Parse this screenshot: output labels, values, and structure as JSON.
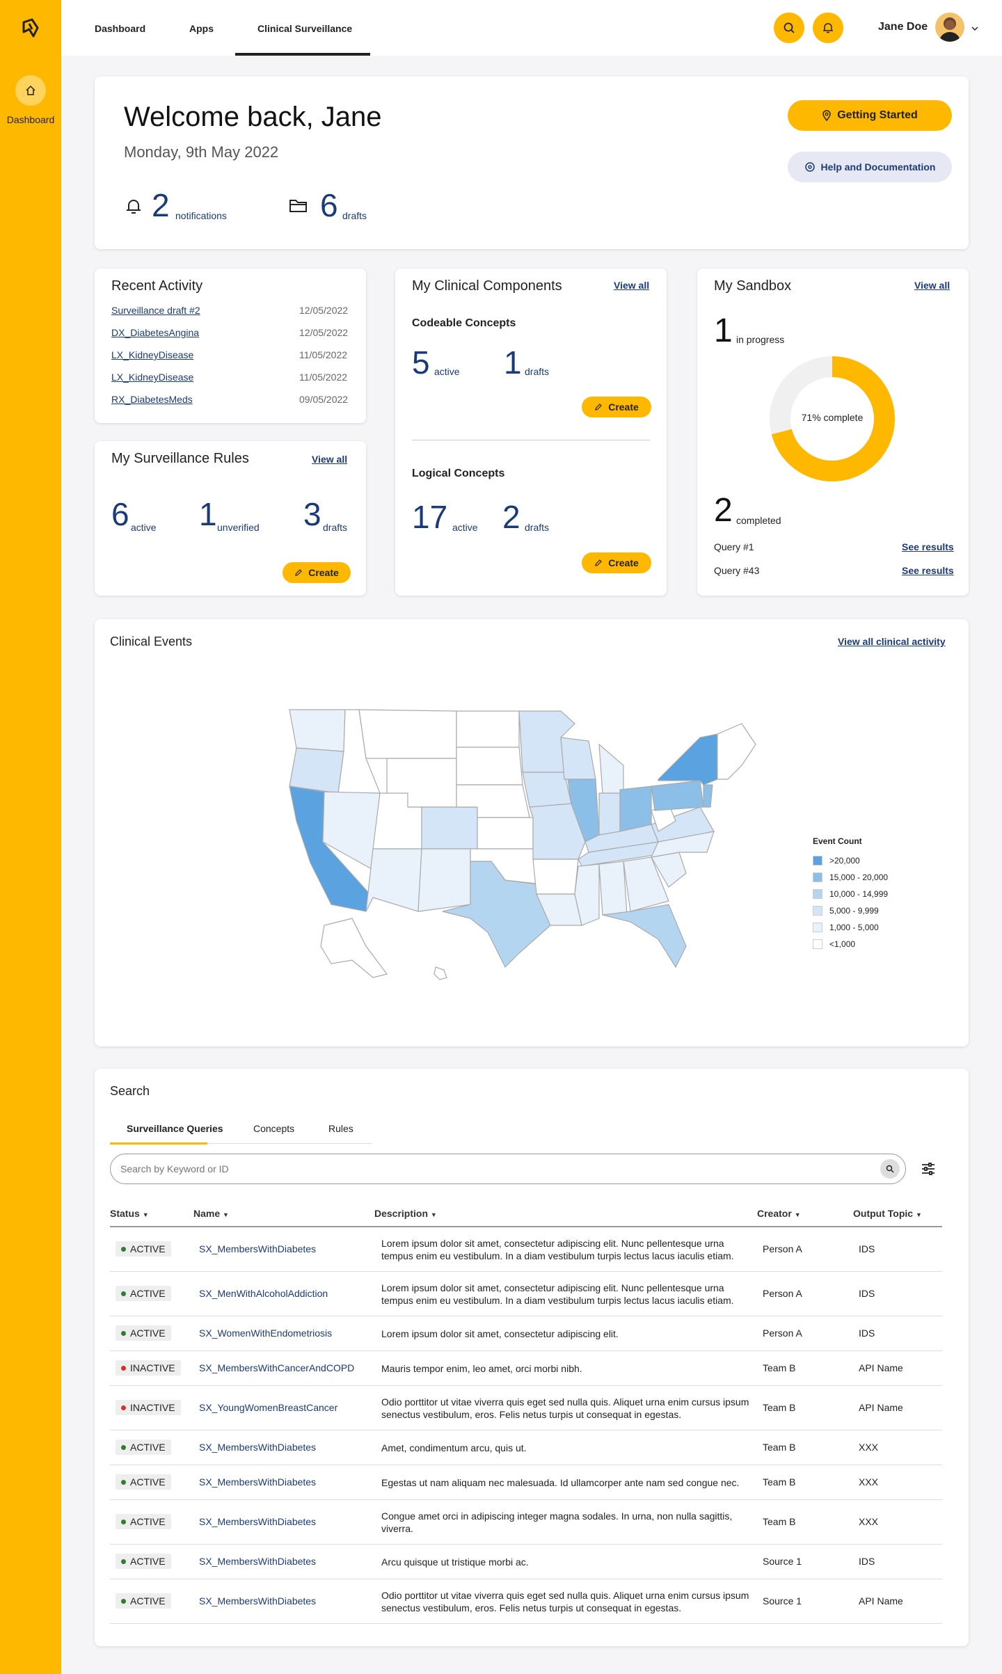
{
  "sidebar": {
    "home_label": "Dashboard"
  },
  "topnav": {
    "tabs": [
      "Dashboard",
      "Apps",
      "Clinical Surveillance"
    ],
    "user_name": "Jane Doe"
  },
  "welcome": {
    "title": "Welcome back, Jane",
    "date": "Monday, 9th May 2022",
    "notifications_count": "2",
    "notifications_label": "notifications",
    "drafts_count": "6",
    "drafts_label": "drafts",
    "getting_started": "Getting Started",
    "help": "Help and Documentation"
  },
  "recent_activity": {
    "title": "Recent Activity",
    "items": [
      {
        "name": "Surveillance draft #2",
        "date": "12/05/2022"
      },
      {
        "name": "DX_DiabetesAngina",
        "date": "12/05/2022"
      },
      {
        "name": "LX_KidneyDisease",
        "date": "11/05/2022"
      },
      {
        "name": "LX_KidneyDisease",
        "date": "11/05/2022"
      },
      {
        "name": "RX_DiabetesMeds",
        "date": "09/05/2022"
      }
    ]
  },
  "rules": {
    "title": "My Surveillance Rules",
    "view_all": "View all",
    "active": "6",
    "active_label": "active",
    "unverified": "1",
    "unverified_label": "unverified",
    "drafts": "3",
    "drafts_label": "drafts",
    "create": "Create"
  },
  "components": {
    "title": "My Clinical Components",
    "view_all": "View all",
    "codeable": {
      "title": "Codeable Concepts",
      "active": "5",
      "active_label": "active",
      "drafts": "1",
      "drafts_label": "drafts",
      "create": "Create"
    },
    "logical": {
      "title": "Logical Concepts",
      "active": "17",
      "active_label": "active",
      "drafts": "2",
      "drafts_label": "drafts",
      "create": "Create"
    }
  },
  "sandbox": {
    "title": "My Sandbox",
    "view_all": "View all",
    "in_progress": "1",
    "in_progress_label": "in progress",
    "percent_complete": 71,
    "donut_label": "71% complete",
    "completed": "2",
    "completed_label": "completed",
    "queries": [
      {
        "name": "Query #1",
        "link": "See results"
      },
      {
        "name": "Query #43",
        "link": "See results"
      }
    ]
  },
  "clinical_events": {
    "title": "Clinical Events",
    "view_all": "View all clinical activity",
    "legend_title": "Event Count",
    "legend": [
      {
        "label": ">20,000",
        "color": "#5aa3e0"
      },
      {
        "label": "15,000 - 20,000",
        "color": "#8cbfe8"
      },
      {
        "label": "10,000 - 14,999",
        "color": "#b4d5f0"
      },
      {
        "label": "5,000 - 9,999",
        "color": "#d3e5f6"
      },
      {
        "label": "1,000 - 5,000",
        "color": "#e9f2fb"
      },
      {
        "label": "<1,000",
        "color": "#ffffff"
      }
    ]
  },
  "search": {
    "title": "Search",
    "tabs": [
      "Surveillance Queries",
      "Concepts",
      "Rules"
    ],
    "placeholder": "Search by Keyword or ID",
    "columns": [
      "Status",
      "Name",
      "Description",
      "Creator",
      "Output Topic"
    ],
    "rows": [
      {
        "status": "ACTIVE",
        "name": "SX_MembersWithDiabetes",
        "desc": "Lorem ipsum dolor sit amet, consectetur adipiscing elit. Nunc pellentesque urna tempus enim eu vestibulum. In a diam vestibulum turpis lectus lacus iaculis etiam.",
        "creator": "Person A",
        "topic": "IDS"
      },
      {
        "status": "ACTIVE",
        "name": "SX_MenWithAlcoholAddiction",
        "desc": "Lorem ipsum dolor sit amet, consectetur adipiscing elit. Nunc pellentesque urna tempus enim eu vestibulum. In a diam vestibulum turpis lectus lacus iaculis etiam.",
        "creator": "Person A",
        "topic": "IDS"
      },
      {
        "status": "ACTIVE",
        "name": "SX_WomenWithEndometriosis",
        "desc": "Lorem ipsum dolor sit amet, consectetur adipiscing elit.",
        "creator": "Person A",
        "topic": "IDS"
      },
      {
        "status": "INACTIVE",
        "name": "SX_MembersWithCancerAndCOPD",
        "desc": "Mauris tempor enim, leo amet, orci morbi nibh.",
        "creator": "Team B",
        "topic": "API Name"
      },
      {
        "status": "INACTIVE",
        "name": "SX_YoungWomenBreastCancer",
        "desc": "Odio porttitor ut vitae viverra quis eget sed nulla quis. Aliquet urna enim cursus ipsum senectus vestibulum, eros. Felis netus turpis ut consequat in egestas.",
        "creator": "Team B",
        "topic": "API Name"
      },
      {
        "status": "ACTIVE",
        "name": "SX_MembersWithDiabetes",
        "desc": "Amet, condimentum arcu, quis ut.",
        "creator": "Team B",
        "topic": "XXX"
      },
      {
        "status": "ACTIVE",
        "name": "SX_MembersWithDiabetes",
        "desc": "Egestas ut nam aliquam nec malesuada. Id ullamcorper ante nam sed congue nec.",
        "creator": "Team B",
        "topic": "XXX"
      },
      {
        "status": "ACTIVE",
        "name": "SX_MembersWithDiabetes",
        "desc": "Congue amet orci in adipiscing integer magna sodales. In urna, non nulla sagittis, viverra.",
        "creator": "Team B",
        "topic": "XXX"
      },
      {
        "status": "ACTIVE",
        "name": "SX_MembersWithDiabetes",
        "desc": "Arcu quisque ut tristique morbi ac.",
        "creator": "Source 1",
        "topic": "IDS"
      },
      {
        "status": "ACTIVE",
        "name": "SX_MembersWithDiabetes",
        "desc": "Odio porttitor ut vitae viverra quis eget sed nulla quis. Aliquet urna enim cursus ipsum senectus vestibulum, eros. Felis netus turpis ut consequat in egestas.",
        "creator": "Source 1",
        "topic": "API Name"
      }
    ]
  },
  "colors": {
    "accent": "#FFB800",
    "link": "#1a3a7a",
    "active_dot": "#2e7d32",
    "inactive_dot": "#d32f2f"
  }
}
